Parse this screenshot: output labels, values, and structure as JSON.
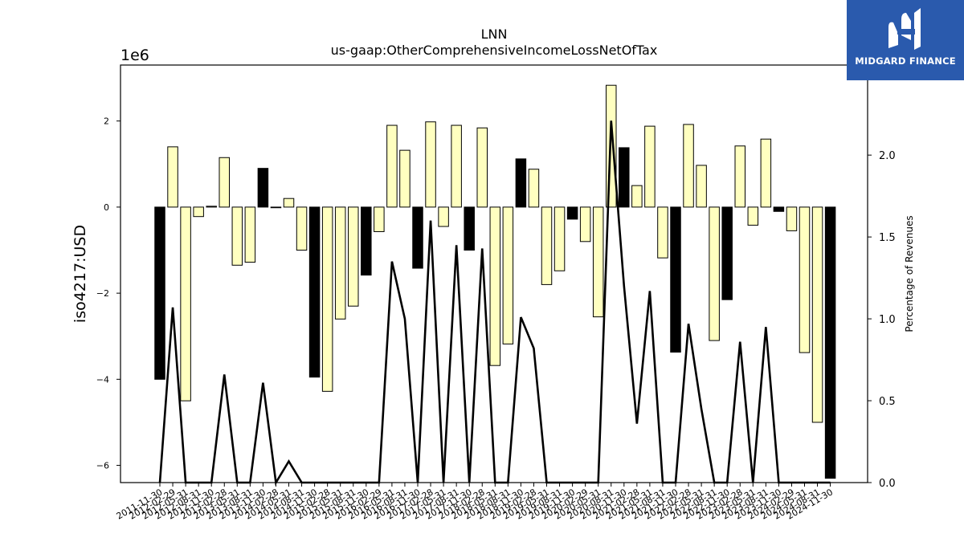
{
  "brand": {
    "name": "MIDGARD FINANCE",
    "icon": "midgard-logo-icon",
    "background": "#2a5aad"
  },
  "chart_data": {
    "type": "bar",
    "title": "LNN",
    "subtitle": "us-gaap:OtherComprehensiveIncomeLossNetOfTax",
    "ylabel": "iso4217:USD",
    "y_offset_label": "1e6",
    "y2label": "Percentage of Revenues",
    "ylim": [
      -6.4,
      3.3
    ],
    "y2lim": [
      0.0,
      2.55
    ],
    "yticks": [
      "−6",
      "−4",
      "−2",
      "0",
      "2"
    ],
    "y2ticks": [
      "0.0",
      "0.5",
      "1.0",
      "1.5",
      "2.0"
    ],
    "grid": false,
    "colors": {
      "positive_fill": "#ffffc0",
      "negative_fill": "#000000",
      "edge": "#000000",
      "line": "#000000"
    },
    "categories": [
      "2011-11-30",
      "2012-02-29",
      "2012-05-31",
      "2012-08-31",
      "2012-11-30",
      "2013-02-28",
      "2013-05-31",
      "2013-08-31",
      "2013-11-30",
      "2014-02-28",
      "2014-05-31",
      "2014-08-31",
      "2014-11-30",
      "2015-02-28",
      "2015-05-31",
      "2015-08-31",
      "2015-11-30",
      "2016-02-29",
      "2016-05-31",
      "2016-08-31",
      "2016-11-30",
      "2017-02-28",
      "2017-05-31",
      "2017-08-31",
      "2017-11-30",
      "2018-02-28",
      "2018-05-31",
      "2018-08-31",
      "2018-11-30",
      "2019-02-28",
      "2019-05-31",
      "2019-08-31",
      "2019-11-30",
      "2020-02-29",
      "2020-05-31",
      "2020-08-31",
      "2020-11-30",
      "2021-02-28",
      "2021-05-31",
      "2021-08-31",
      "2021-11-30",
      "2022-02-28",
      "2022-05-31",
      "2022-08-31",
      "2022-11-30",
      "2023-02-28",
      "2023-05-31",
      "2023-08-31",
      "2023-11-30",
      "2024-02-29",
      "2024-05-31",
      "2024-08-31",
      "2024-11-30"
    ],
    "bar_styles": [
      "black",
      "yellow",
      "yellow",
      "yellow",
      "yellow",
      "yellow",
      "yellow",
      "yellow",
      "black",
      "black",
      "yellow",
      "yellow",
      "black",
      "yellow",
      "yellow",
      "yellow",
      "black",
      "yellow",
      "yellow",
      "yellow",
      "black",
      "yellow",
      "yellow",
      "yellow",
      "black",
      "yellow",
      "yellow",
      "yellow",
      "black",
      "yellow",
      "yellow",
      "yellow",
      "black",
      "yellow",
      "yellow",
      "yellow",
      "black",
      "yellow",
      "yellow",
      "yellow",
      "black",
      "yellow",
      "yellow",
      "yellow",
      "black",
      "yellow",
      "yellow",
      "yellow",
      "black",
      "yellow",
      "yellow",
      "yellow",
      "black"
    ],
    "series": [
      {
        "values": [
          -4.0,
          1.4,
          -4.5,
          -0.22,
          0.02,
          1.15,
          -1.35,
          -1.28,
          0.9,
          0.0,
          0.2,
          -1.0,
          -3.95,
          -4.28,
          -2.6,
          -2.3,
          -1.58,
          -0.57,
          1.9,
          1.32,
          -1.42,
          1.98,
          -0.45,
          1.9,
          -1.0,
          1.84,
          -3.68,
          -3.18,
          1.12,
          0.88,
          -1.8,
          -1.48,
          -0.28,
          -0.8,
          -2.55,
          2.83,
          1.38,
          0.5,
          1.88,
          -1.18,
          -3.37,
          1.92,
          0.97,
          -3.1,
          -2.15,
          1.42,
          -0.42,
          1.58,
          -0.1,
          -0.55,
          -3.38,
          -5.0,
          -6.3
        ]
      },
      {
        "axis": "right",
        "type": "line",
        "values": [
          0.0,
          1.07,
          0.0,
          0.0,
          0.0,
          0.66,
          0.0,
          0.0,
          0.61,
          0.0,
          0.13,
          0.0,
          0.0,
          0.0,
          0.0,
          0.0,
          0.0,
          0.0,
          1.35,
          1.0,
          0.0,
          1.6,
          0.0,
          1.45,
          0.0,
          1.43,
          0.0,
          0.0,
          1.01,
          0.82,
          0.0,
          0.0,
          0.0,
          0.0,
          0.0,
          2.21,
          1.2,
          0.36,
          1.17,
          0.0,
          0.0,
          0.97,
          0.45,
          0.0,
          0.0,
          0.86,
          0.0,
          0.95,
          0.0,
          0.0,
          0.0,
          0.0,
          0.0
        ]
      }
    ]
  }
}
